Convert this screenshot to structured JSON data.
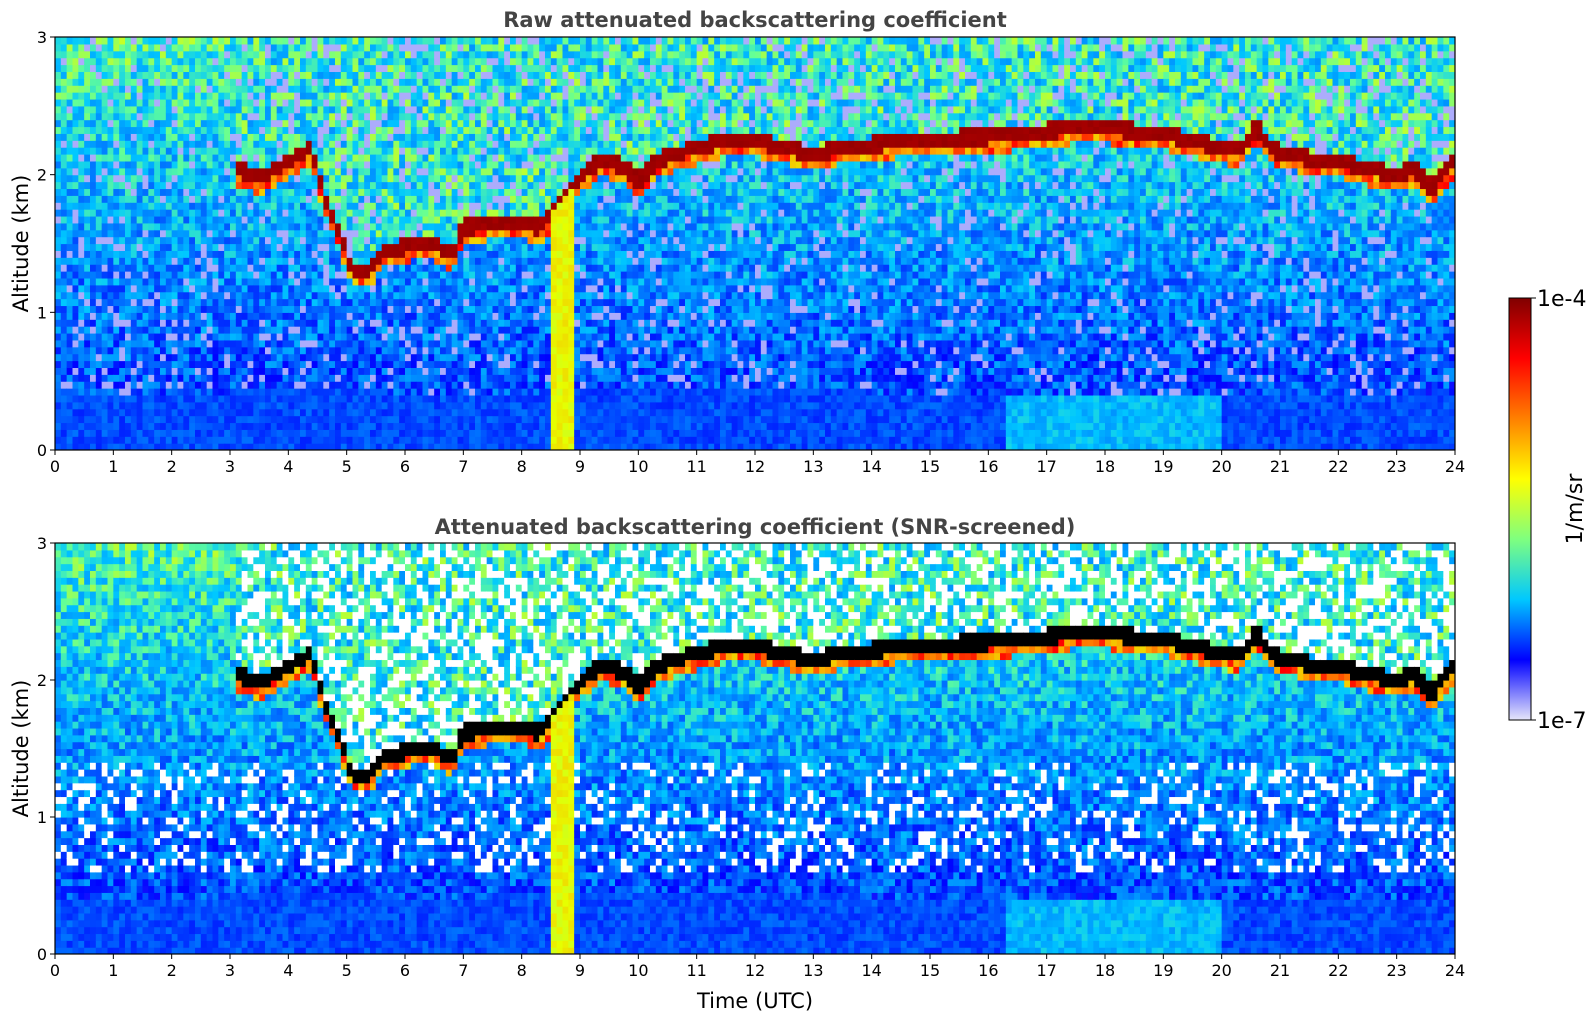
{
  "chart_data": [
    {
      "type": "heatmap",
      "title": "Raw attenuated backscattering coefficient",
      "xlabel": "",
      "ylabel": "Altitude (km)",
      "xlim": [
        0,
        24
      ],
      "ylim": [
        0,
        3
      ],
      "xticks": [
        "0",
        "1",
        "2",
        "3",
        "4",
        "5",
        "6",
        "7",
        "8",
        "9",
        "10",
        "11",
        "12",
        "13",
        "14",
        "15",
        "16",
        "17",
        "18",
        "19",
        "20",
        "21",
        "22",
        "23",
        "24"
      ],
      "yticks": [
        "0",
        "1",
        "2",
        "3"
      ],
      "layer_height_km": [
        [
          3.1,
          2.05
        ],
        [
          3.5,
          1.98
        ],
        [
          3.8,
          2.05
        ],
        [
          4.2,
          2.15
        ],
        [
          4.4,
          2.2
        ],
        [
          4.6,
          1.85
        ],
        [
          4.9,
          1.55
        ],
        [
          5.1,
          1.3
        ],
        [
          5.4,
          1.3
        ],
        [
          5.6,
          1.45
        ],
        [
          6.0,
          1.48
        ],
        [
          6.4,
          1.52
        ],
        [
          6.8,
          1.42
        ],
        [
          7.0,
          1.62
        ],
        [
          7.5,
          1.65
        ],
        [
          8.0,
          1.65
        ],
        [
          8.3,
          1.62
        ],
        [
          8.6,
          1.75
        ],
        [
          9.0,
          2.0
        ],
        [
          9.4,
          2.12
        ],
        [
          9.8,
          2.05
        ],
        [
          10.0,
          1.95
        ],
        [
          10.3,
          2.1
        ],
        [
          10.6,
          2.15
        ],
        [
          11.0,
          2.2
        ],
        [
          11.5,
          2.25
        ],
        [
          12.0,
          2.25
        ],
        [
          12.5,
          2.2
        ],
        [
          13.0,
          2.15
        ],
        [
          13.5,
          2.2
        ],
        [
          14.0,
          2.22
        ],
        [
          14.5,
          2.25
        ],
        [
          15.0,
          2.25
        ],
        [
          15.5,
          2.27
        ],
        [
          16.0,
          2.28
        ],
        [
          16.5,
          2.3
        ],
        [
          17.0,
          2.32
        ],
        [
          17.5,
          2.35
        ],
        [
          18.0,
          2.35
        ],
        [
          18.5,
          2.32
        ],
        [
          19.0,
          2.3
        ],
        [
          19.5,
          2.25
        ],
        [
          20.0,
          2.2
        ],
        [
          20.3,
          2.18
        ],
        [
          20.6,
          2.35
        ],
        [
          20.9,
          2.18
        ],
        [
          21.3,
          2.15
        ],
        [
          21.6,
          2.1
        ],
        [
          22.0,
          2.1
        ],
        [
          22.5,
          2.05
        ],
        [
          23.0,
          2.0
        ],
        [
          23.3,
          2.05
        ],
        [
          23.6,
          1.9
        ],
        [
          24.0,
          2.12
        ]
      ],
      "aerosol_top_km": [
        [
          0,
          0.4
        ],
        [
          2,
          0.4
        ],
        [
          4,
          0.45
        ],
        [
          6,
          0.42
        ],
        [
          8,
          0.42
        ],
        [
          10,
          0.45
        ],
        [
          12,
          0.45
        ],
        [
          14,
          0.42
        ],
        [
          16,
          0.4
        ],
        [
          18,
          0.4
        ],
        [
          20,
          0.42
        ],
        [
          22,
          0.42
        ],
        [
          24,
          0.42
        ]
      ]
    },
    {
      "type": "heatmap",
      "title": "Attenuated backscattering coefficient (SNR-screened)",
      "xlabel": "Time (UTC)",
      "ylabel": "Altitude (km)",
      "xlim": [
        0,
        24
      ],
      "ylim": [
        0,
        3
      ],
      "xticks": [
        "0",
        "1",
        "2",
        "3",
        "4",
        "5",
        "6",
        "7",
        "8",
        "9",
        "10",
        "11",
        "12",
        "13",
        "14",
        "15",
        "16",
        "17",
        "18",
        "19",
        "20",
        "21",
        "22",
        "23",
        "24"
      ],
      "yticks": [
        "0",
        "1",
        "2",
        "3"
      ]
    }
  ],
  "colorbar": {
    "max_label": "1e-4",
    "min_label": "1e-7",
    "unit_label": "1/m/sr",
    "range": [
      1e-07,
      0.0001
    ],
    "scale": "log",
    "colors": [
      "#e6e6fa",
      "#0000ff",
      "#00c8ff",
      "#7fff7f",
      "#ffff00",
      "#ff8000",
      "#ff0000",
      "#800000"
    ]
  }
}
